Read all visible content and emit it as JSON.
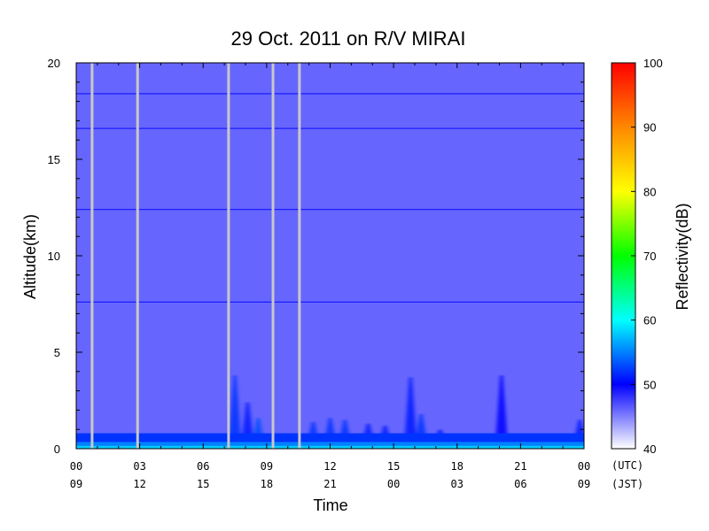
{
  "chart_data": {
    "type": "heatmap",
    "title": "29 Oct. 2011  on R/V MIRAI",
    "xlabel": "Time",
    "ylabel": "Altitude(km)",
    "xlim": [
      0,
      24
    ],
    "ylim": [
      0,
      20
    ],
    "x_ticks_utc": [
      "00",
      "03",
      "06",
      "09",
      "12",
      "15",
      "18",
      "21",
      "00"
    ],
    "x_ticks_jst": [
      "09",
      "12",
      "15",
      "18",
      "21",
      "00",
      "03",
      "06",
      "09"
    ],
    "x_tick_hours": [
      0,
      3,
      6,
      9,
      12,
      15,
      18,
      21,
      24
    ],
    "x_timezone_utc": "(UTC)",
    "x_timezone_jst": "(JST)",
    "y_ticks": [
      "0",
      "5",
      "10",
      "15",
      "20"
    ],
    "y_tick_values": [
      0,
      5,
      10,
      15,
      20
    ],
    "colorbar": {
      "label": "Reflectivity(dB)",
      "range": [
        40,
        100
      ],
      "ticks": [
        "40",
        "50",
        "60",
        "70",
        "80",
        "90",
        "100"
      ],
      "tick_values": [
        40,
        50,
        60,
        70,
        80,
        90,
        100
      ]
    },
    "background_dB": 46,
    "horizontal_lines_km": [
      18.4,
      16.6,
      12.4,
      7.6
    ],
    "data_gap_hours": [
      0.75,
      2.9,
      7.2,
      9.3,
      10.55
    ],
    "surface_layer": {
      "top_km": 0.8,
      "dB_low": 55,
      "dB_mid": 52
    },
    "echo_events": [
      {
        "hour": 7.5,
        "top_km": 3.8,
        "dB": 52
      },
      {
        "hour": 8.1,
        "top_km": 2.4,
        "dB": 51
      },
      {
        "hour": 8.6,
        "top_km": 1.6,
        "dB": 53
      },
      {
        "hour": 11.2,
        "top_km": 1.4,
        "dB": 52
      },
      {
        "hour": 12.0,
        "top_km": 1.6,
        "dB": 52
      },
      {
        "hour": 12.7,
        "top_km": 1.5,
        "dB": 52
      },
      {
        "hour": 13.8,
        "top_km": 1.3,
        "dB": 51
      },
      {
        "hour": 14.6,
        "top_km": 1.2,
        "dB": 51
      },
      {
        "hour": 15.8,
        "top_km": 3.7,
        "dB": 51
      },
      {
        "hour": 16.3,
        "top_km": 1.8,
        "dB": 52
      },
      {
        "hour": 17.2,
        "top_km": 1.0,
        "dB": 51
      },
      {
        "hour": 20.1,
        "top_km": 3.8,
        "dB": 50
      },
      {
        "hour": 23.8,
        "top_km": 1.5,
        "dB": 51
      }
    ]
  }
}
